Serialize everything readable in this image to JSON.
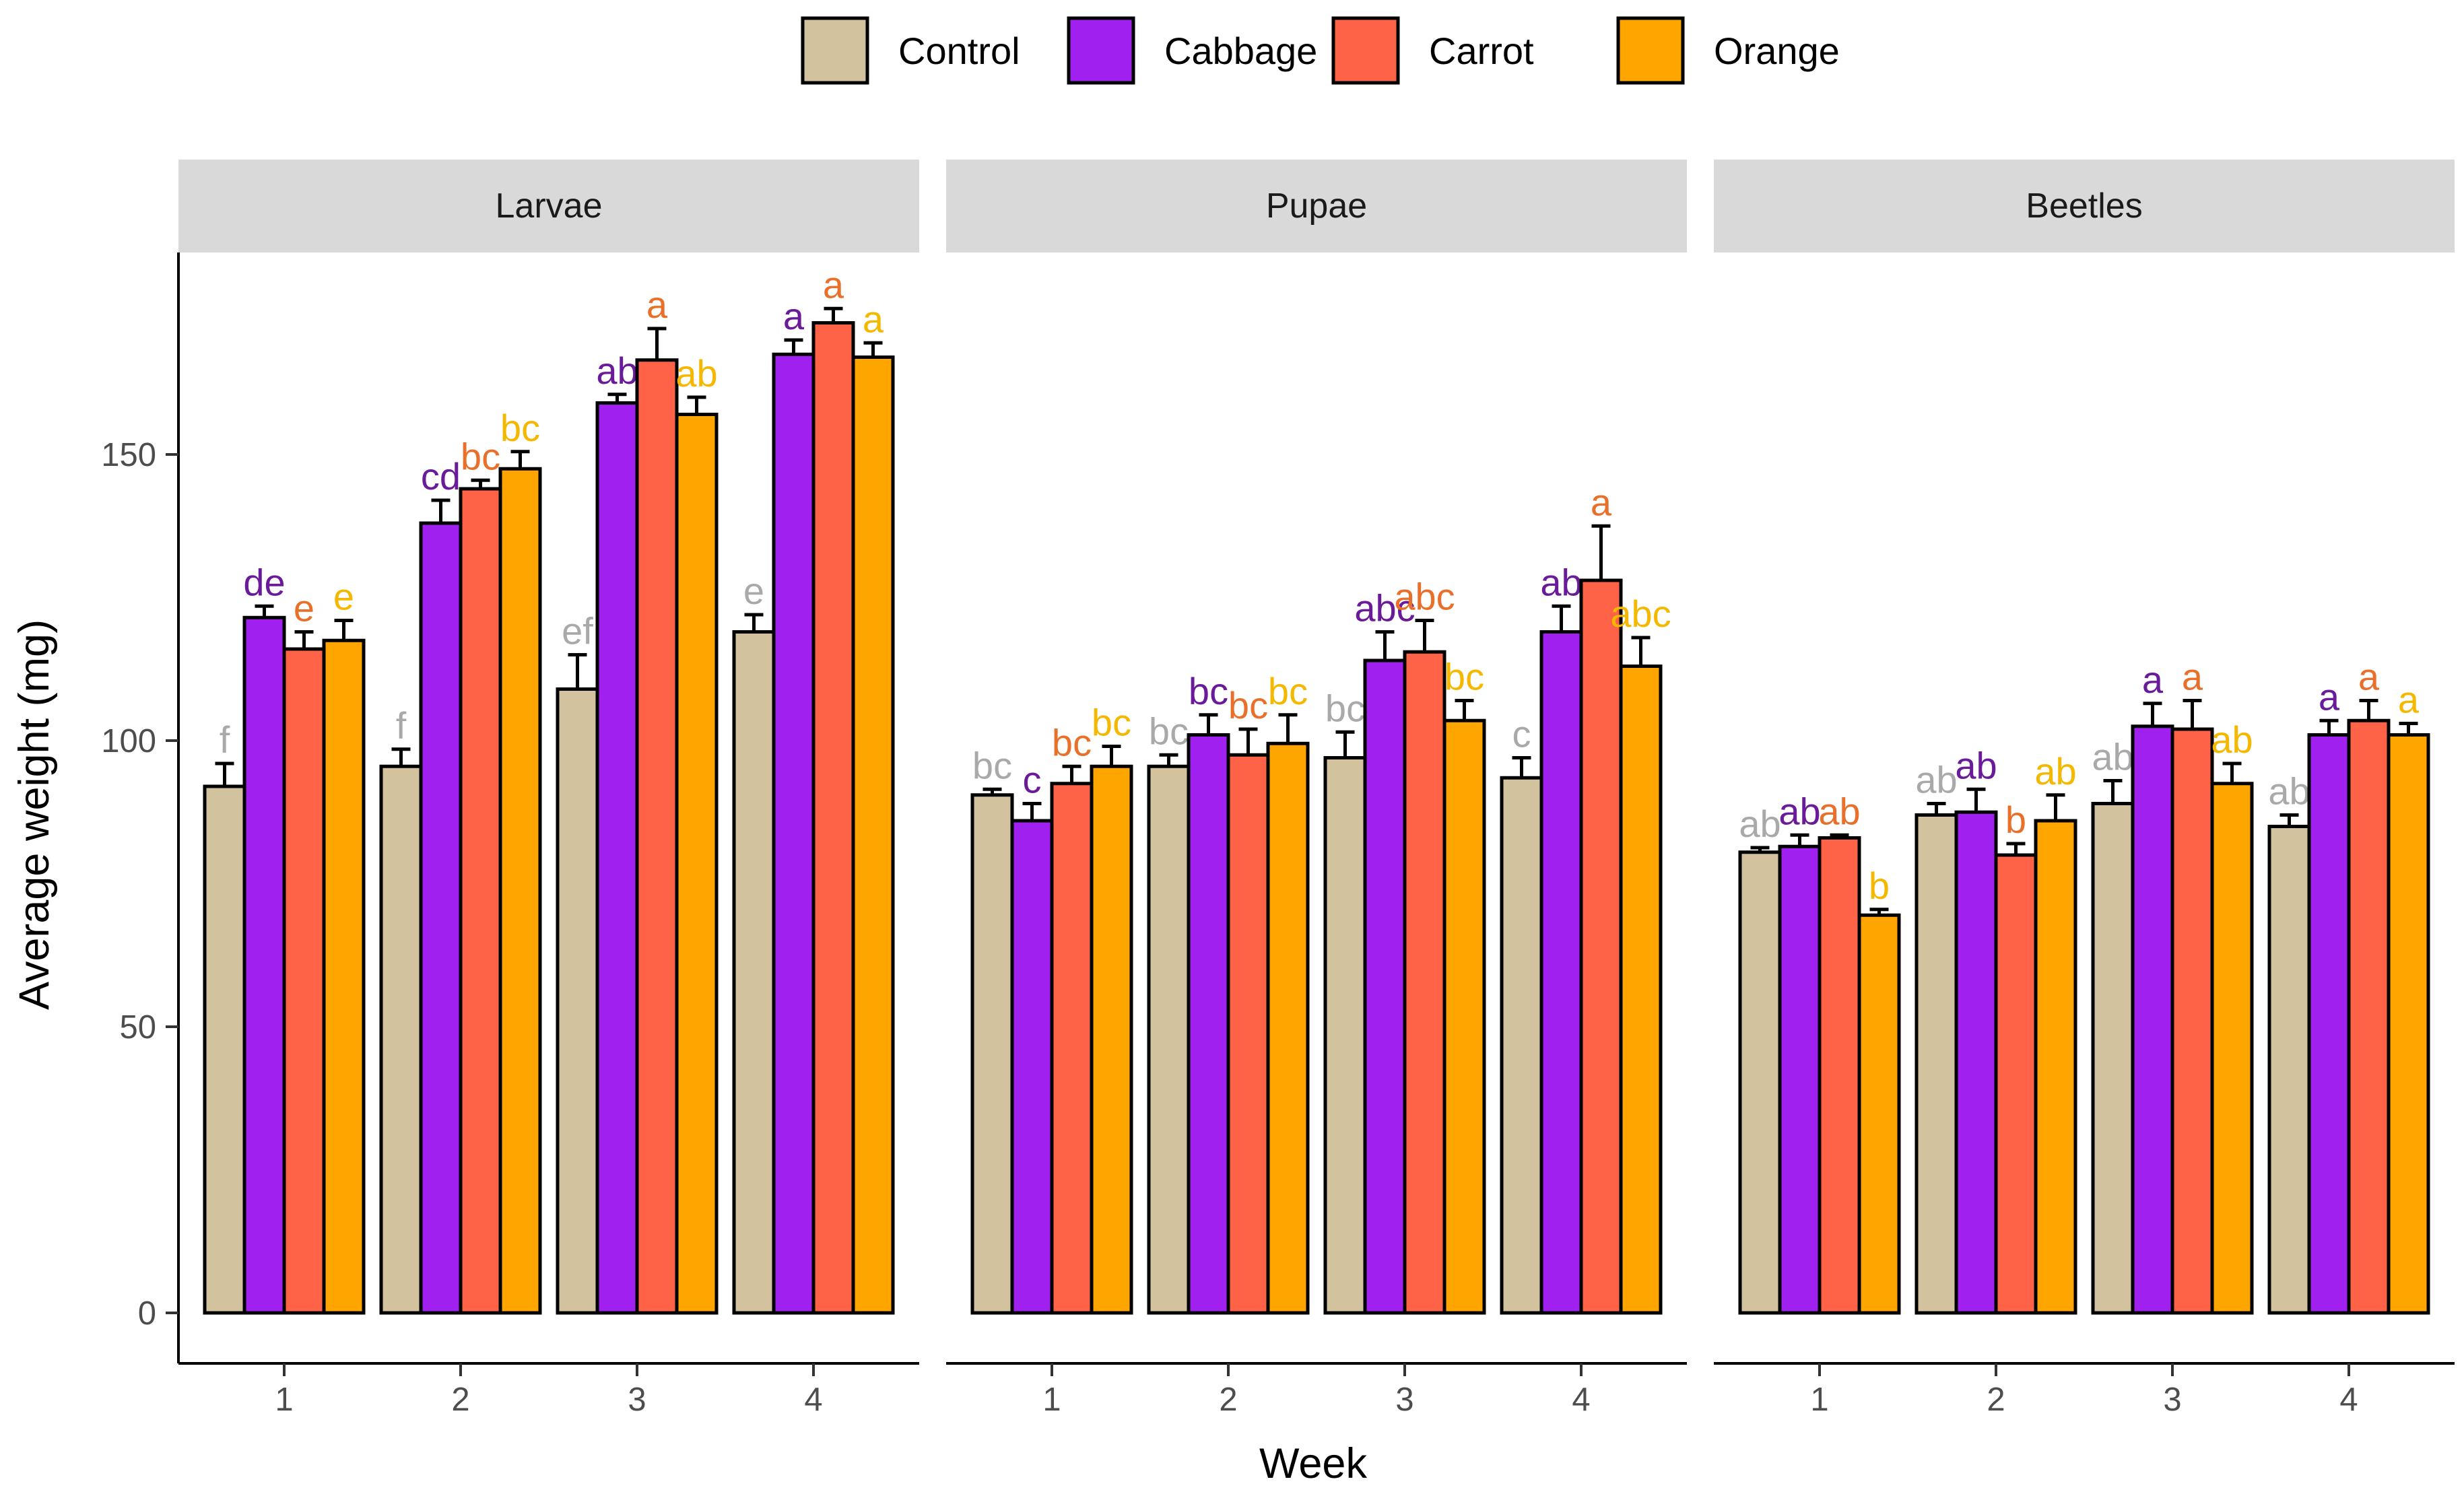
{
  "chart_data": {
    "type": "bar",
    "ylabel": "Average weight (mg)",
    "xlabel": "Week",
    "ylim": [
      -6,
      185
    ],
    "yticks": [
      0,
      50,
      100,
      150
    ],
    "categories": [
      "1",
      "2",
      "3",
      "4"
    ],
    "legend": {
      "position": "top",
      "entries": [
        {
          "name": "Control",
          "color": "#D2C29E"
        },
        {
          "name": "Cabbage",
          "color": "#A020F0"
        },
        {
          "name": "Carrot",
          "color": "#FF6347"
        },
        {
          "name": "Orange",
          "color": "#FFA500"
        }
      ]
    },
    "letter_colors": {
      "Control": "#A9A9A9",
      "Cabbage": "#6A1B9A",
      "Carrot": "#E8702A",
      "Orange": "#F5B800"
    },
    "panels": [
      {
        "name": "Larvae",
        "series": [
          {
            "name": "Control",
            "values": [
              92,
              95.5,
              109,
              119
            ],
            "errors": [
              4,
              3,
              6,
              3
            ],
            "letters": [
              "f",
              "f",
              "ef",
              "e"
            ]
          },
          {
            "name": "Cabbage",
            "values": [
              121.5,
              138,
              159,
              167.5
            ],
            "errors": [
              2,
              4,
              1.5,
              2.5
            ],
            "letters": [
              "de",
              "cd",
              "ab",
              "a"
            ]
          },
          {
            "name": "Carrot",
            "values": [
              116,
              144,
              166.5,
              173
            ],
            "errors": [
              3,
              1.5,
              5.5,
              2.5
            ],
            "letters": [
              "e",
              "bc",
              "a",
              "a"
            ]
          },
          {
            "name": "Orange",
            "values": [
              117.5,
              147.5,
              157,
              167
            ],
            "errors": [
              3.5,
              3,
              3,
              2.5
            ],
            "letters": [
              "e",
              "bc",
              "ab",
              "a"
            ]
          }
        ]
      },
      {
        "name": "Pupae",
        "series": [
          {
            "name": "Control",
            "values": [
              90.5,
              95.5,
              97,
              93.5
            ],
            "errors": [
              1,
              2,
              4.5,
              3.5
            ],
            "letters": [
              "bc",
              "bc",
              "bc",
              "c"
            ]
          },
          {
            "name": "Cabbage",
            "values": [
              86,
              101,
              114,
              119
            ],
            "errors": [
              3,
              3.5,
              5,
              4.5
            ],
            "letters": [
              "c",
              "bc",
              "abc",
              "ab"
            ]
          },
          {
            "name": "Carrot",
            "values": [
              92.5,
              97.5,
              115.5,
              128
            ],
            "errors": [
              3,
              4.5,
              5.5,
              9.5
            ],
            "letters": [
              "bc",
              "bc",
              "abc",
              "a"
            ]
          },
          {
            "name": "Orange",
            "values": [
              95.5,
              99.5,
              103.5,
              113
            ],
            "errors": [
              3.5,
              5,
              3.5,
              5
            ],
            "letters": [
              "bc",
              "bc",
              "bc",
              "abc"
            ]
          }
        ]
      },
      {
        "name": "Beetles",
        "series": [
          {
            "name": "Control",
            "values": [
              80.5,
              87,
              89,
              85
            ],
            "errors": [
              0.8,
              2,
              4,
              2
            ],
            "letters": [
              "ab",
              "ab",
              "ab",
              "ab"
            ]
          },
          {
            "name": "Cabbage",
            "values": [
              81.5,
              87.5,
              102.5,
              101
            ],
            "errors": [
              2,
              4,
              4,
              2.5
            ],
            "letters": [
              "ab",
              "ab",
              "a",
              "a"
            ]
          },
          {
            "name": "Carrot",
            "values": [
              83,
              80,
              102,
              103.5
            ],
            "errors": [
              0.5,
              2,
              5,
              3.5
            ],
            "letters": [
              "ab",
              "b",
              "a",
              "a"
            ]
          },
          {
            "name": "Orange",
            "values": [
              69.5,
              86,
              92.5,
              101
            ],
            "errors": [
              1,
              4.5,
              3.5,
              2
            ],
            "letters": [
              "b",
              "ab",
              "ab",
              "a"
            ]
          }
        ]
      }
    ]
  }
}
